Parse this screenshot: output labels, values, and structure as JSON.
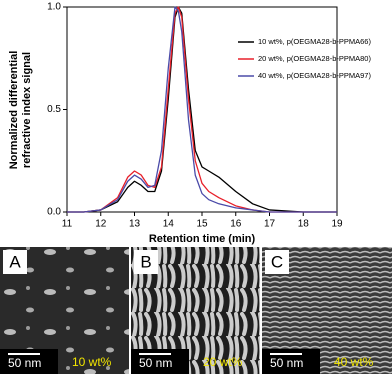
{
  "chart_data": {
    "type": "line",
    "xlabel": "Retention time (min)",
    "ylabel": [
      "Normalized differential",
      "refractive index signal"
    ],
    "x": [
      11,
      11.5,
      12,
      12.5,
      12.8,
      13,
      13.2,
      13.4,
      13.6,
      13.8,
      14,
      14.2,
      14.3,
      14.4,
      14.6,
      14.8,
      15,
      15.2,
      15.5,
      16,
      16.5,
      17,
      18,
      19
    ],
    "series": [
      {
        "name": "10 wt%, p(OEGMA28-b-PPMA66)",
        "color": "#000000",
        "values": [
          0,
          0,
          0.01,
          0.05,
          0.12,
          0.15,
          0.13,
          0.1,
          0.1,
          0.2,
          0.55,
          0.95,
          1.0,
          0.97,
          0.6,
          0.3,
          0.22,
          0.2,
          0.17,
          0.1,
          0.04,
          0.01,
          0,
          0
        ]
      },
      {
        "name": "20 wt%, p(OEGMA28-b-PPMA80)",
        "color": "#e8202a",
        "values": [
          0,
          0,
          0.01,
          0.07,
          0.17,
          0.2,
          0.18,
          0.13,
          0.12,
          0.22,
          0.6,
          0.97,
          1.0,
          0.95,
          0.55,
          0.25,
          0.14,
          0.1,
          0.07,
          0.03,
          0.01,
          0,
          0,
          0
        ]
      },
      {
        "name": "40 wt%, p(OEGMA28-b-PPMA97)",
        "color": "#4a4aa8",
        "values": [
          0,
          0,
          0.01,
          0.06,
          0.15,
          0.18,
          0.16,
          0.12,
          0.13,
          0.3,
          0.7,
          1.0,
          0.98,
          0.88,
          0.45,
          0.18,
          0.09,
          0.06,
          0.04,
          0.02,
          0.01,
          0,
          0,
          0
        ]
      }
    ],
    "xlim": [
      11,
      19
    ],
    "xticks": [
      11,
      12,
      13,
      14,
      15,
      16,
      17,
      18,
      19
    ],
    "ylim": [
      0,
      1
    ],
    "yticks": [
      {
        "value": 0,
        "label": "0.0"
      },
      {
        "value": 0.5,
        "label": "0.5"
      },
      {
        "value": 1,
        "label": "1.0"
      }
    ],
    "legend": "upper right"
  },
  "panels": [
    {
      "label": "A",
      "scale": "50 nm",
      "concentration": "10 wt%"
    },
    {
      "label": "B",
      "scale": "50 nm",
      "concentration": "20 wt%"
    },
    {
      "label": "C",
      "scale": "50 nm",
      "concentration": "40 wt%"
    }
  ]
}
